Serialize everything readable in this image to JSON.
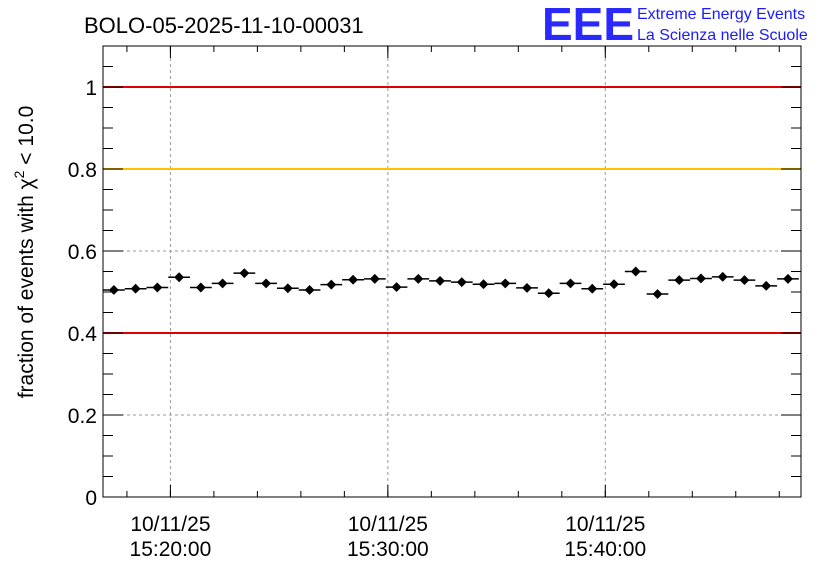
{
  "chart_data": {
    "type": "scatter",
    "title": "BOLO-05-2025-11-10-00031",
    "ylabel_parts": {
      "pre": "fraction of events with ",
      "chi": "χ",
      "sup": "2",
      "post": " < 10.0"
    },
    "xlabel": "",
    "x_unit": "minutes",
    "xlim": [
      "2025-11-10 15:16:54",
      "2025-11-10 15:49:00"
    ],
    "ylim": [
      0,
      1.1
    ],
    "y_ticks": [
      "0",
      "0.2",
      "0.4",
      "0.6",
      "0.8",
      "1"
    ],
    "x_ticks": [
      {
        "date": "10/11/25",
        "time": "15:20:00"
      },
      {
        "date": "10/11/25",
        "time": "15:30:00"
      },
      {
        "date": "10/11/25",
        "time": "15:40:00"
      }
    ],
    "grid": true,
    "reference_lines": [
      {
        "y": 1.0,
        "color": "#e00000"
      },
      {
        "y": 0.8,
        "color": "#ffc000"
      },
      {
        "y": 0.4,
        "color": "#e00000"
      }
    ],
    "series": [
      {
        "x": [
          "15:17:24",
          "15:18:24",
          "15:19:24",
          "15:20:24",
          "15:21:24",
          "15:22:24",
          "15:23:24",
          "15:24:24",
          "15:25:24",
          "15:26:24",
          "15:27:24",
          "15:28:24",
          "15:29:24",
          "15:30:24",
          "15:31:24",
          "15:32:24",
          "15:33:24",
          "15:34:24",
          "15:35:24",
          "15:36:24",
          "15:37:24",
          "15:38:24",
          "15:39:24",
          "15:40:24",
          "15:41:24",
          "15:42:24",
          "15:43:24",
          "15:44:24",
          "15:45:24",
          "15:46:24",
          "15:47:24",
          "15:48:24"
        ],
        "values": [
          0.505,
          0.508,
          0.511,
          0.536,
          0.511,
          0.521,
          0.546,
          0.521,
          0.509,
          0.505,
          0.518,
          0.53,
          0.532,
          0.512,
          0.532,
          0.527,
          0.524,
          0.519,
          0.521,
          0.51,
          0.497,
          0.521,
          0.508,
          0.519,
          0.55,
          0.495,
          0.529,
          0.533,
          0.537,
          0.529,
          0.515,
          0.532
        ],
        "yerr": 0.008,
        "color": "#000000"
      }
    ]
  },
  "logo": {
    "mark": "EEE",
    "line1": "Extreme Energy Events",
    "line2": "La Scienza nelle Scuole",
    "color": "#1a1aff"
  }
}
